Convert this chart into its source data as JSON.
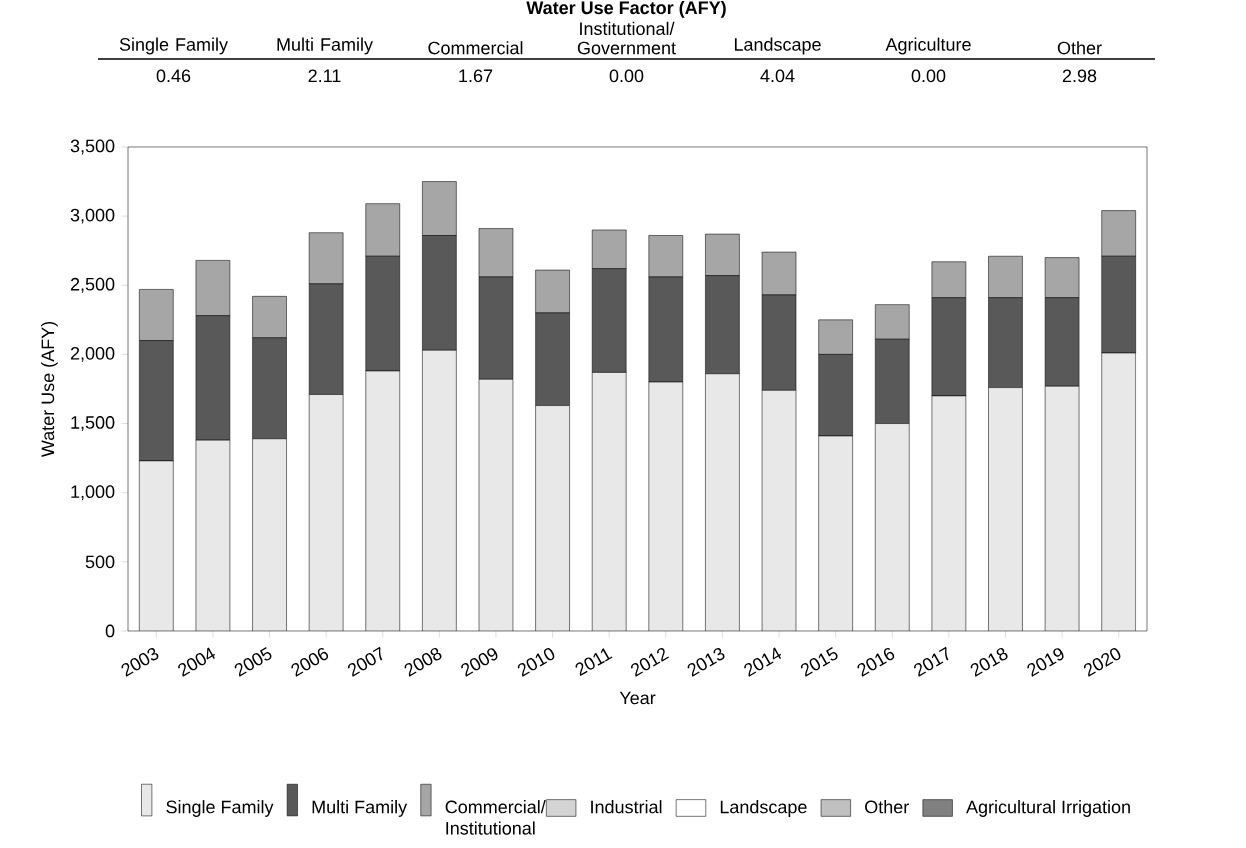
{
  "chart_data": [
    {
      "type": "other",
      "title": "Water Use Factor (AFY)",
      "categories": [
        "Single Family",
        "Multi Family",
        "Commercial",
        "Institutional/ Government",
        "Landscape",
        "Agriculture",
        "Other"
      ],
      "value_labels": [
        "0.46",
        "2.11",
        "1.67",
        "0.00",
        "4.04",
        "0.00",
        "2.98"
      ]
    },
    {
      "type": "bar",
      "stacked": true,
      "xlabel": "Year",
      "ylabel": "Water Use (AFY)",
      "categories": [
        "2003",
        "2004",
        "2005",
        "2006",
        "2007",
        "2008",
        "2009",
        "2010",
        "2011",
        "2012",
        "2013",
        "2014",
        "2015",
        "2016",
        "2017",
        "2018",
        "2019",
        "2020"
      ],
      "ylim": [
        0,
        3500
      ],
      "yticks": [
        0,
        500,
        {
          "value": 1000,
          "label": "1,000"
        },
        {
          "value": 1500,
          "label": "1,500"
        },
        {
          "value": 2000,
          "label": "2,000"
        },
        {
          "value": 2500,
          "label": "2,500"
        },
        {
          "value": 3000,
          "label": "3,000"
        },
        {
          "value": 3500,
          "label": "3,500"
        }
      ],
      "legend": "bottom",
      "series": [
        {
          "name": "Single Family",
          "color": "#e8e8e8",
          "values": [
            1230,
            1380,
            1390,
            1710,
            1880,
            2030,
            1820,
            1630,
            1870,
            1800,
            1860,
            1740,
            1410,
            1500,
            1700,
            1760,
            1770,
            2010
          ]
        },
        {
          "name": "Multi Family",
          "color": "#595959",
          "values": [
            870,
            900,
            730,
            800,
            830,
            830,
            740,
            670,
            750,
            760,
            710,
            690,
            590,
            610,
            710,
            650,
            640,
            700
          ]
        },
        {
          "name": "Commercial/ Institutional",
          "color": "#a6a6a6",
          "values": [
            370,
            400,
            300,
            370,
            380,
            390,
            350,
            310,
            280,
            300,
            300,
            310,
            250,
            250,
            260,
            300,
            290,
            330
          ]
        },
        {
          "name": "Industrial",
          "color": "#d4d4d4",
          "values": [
            null,
            null,
            null,
            null,
            null,
            null,
            null,
            null,
            null,
            null,
            null,
            null,
            null,
            null,
            null,
            null,
            null,
            null
          ]
        },
        {
          "name": "Landscape",
          "color": "#ffffff",
          "values": [
            null,
            null,
            null,
            null,
            null,
            null,
            null,
            null,
            null,
            null,
            null,
            null,
            null,
            null,
            null,
            null,
            null,
            null
          ]
        },
        {
          "name": "Other",
          "color": "#c0c0c0",
          "values": [
            null,
            null,
            null,
            null,
            null,
            null,
            null,
            null,
            null,
            null,
            null,
            null,
            null,
            null,
            null,
            null,
            null,
            null
          ]
        },
        {
          "name": "Agricultural Irrigation",
          "color": "#808080",
          "values": [
            null,
            null,
            null,
            null,
            null,
            null,
            null,
            null,
            null,
            null,
            null,
            null,
            null,
            null,
            null,
            null,
            null,
            null
          ]
        }
      ]
    }
  ]
}
